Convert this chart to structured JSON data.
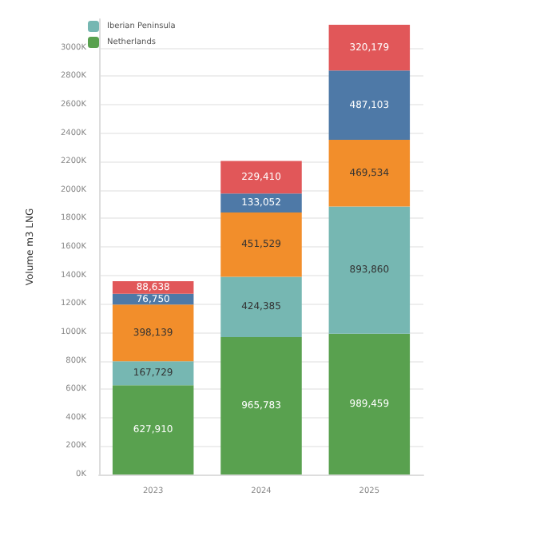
{
  "chart_data": {
    "type": "bar",
    "stacked": true,
    "ylabel": "Volume m3 LNG",
    "categories": [
      "2023",
      "2024",
      "2025"
    ],
    "series": [
      {
        "name": "Netherlands",
        "color": "#59a14f",
        "values": [
          627910,
          965783,
          989459
        ],
        "value_labels": [
          "627,910",
          "965,783",
          "989,459"
        ]
      },
      {
        "name": "Iberian Peninsula",
        "color": "#76b7b2",
        "values": [
          167729,
          424385,
          893860
        ],
        "value_labels": [
          "167,729",
          "424,385",
          "893,860"
        ]
      },
      {
        "color": "#f28e2b",
        "values": [
          398139,
          451529,
          469534
        ],
        "value_labels": [
          "398,139",
          "451,529",
          "469,534"
        ]
      },
      {
        "color": "#4e79a7",
        "values": [
          76750,
          133052,
          487103
        ],
        "value_labels": [
          "76,750",
          "133,052",
          "487,103"
        ]
      },
      {
        "color": "#e15759",
        "values": [
          88638,
          229410,
          320179
        ],
        "value_labels": [
          "88,638",
          "229,410",
          "320,179"
        ]
      }
    ],
    "ylim": [
      0,
      3200000
    ],
    "yticks": [
      {
        "value": 0,
        "label": "0K"
      },
      {
        "value": 200000,
        "label": "200K"
      },
      {
        "value": 400000,
        "label": "400K"
      },
      {
        "value": 600000,
        "label": "600K"
      },
      {
        "value": 800000,
        "label": "800K"
      },
      {
        "value": 1000000,
        "label": "1000K"
      },
      {
        "value": 1200000,
        "label": "1200K"
      },
      {
        "value": 1400000,
        "label": "1400K"
      },
      {
        "value": 1600000,
        "label": "1600K"
      },
      {
        "value": 1800000,
        "label": "1800K"
      },
      {
        "value": 2000000,
        "label": "2000K"
      },
      {
        "value": 2200000,
        "label": "2200K"
      },
      {
        "value": 2400000,
        "label": "2400K"
      },
      {
        "value": 2600000,
        "label": "2600K"
      },
      {
        "value": 2800000,
        "label": "2800K"
      },
      {
        "value": 3000000,
        "label": "3000K"
      }
    ],
    "grid": "y",
    "legend": "top left"
  }
}
